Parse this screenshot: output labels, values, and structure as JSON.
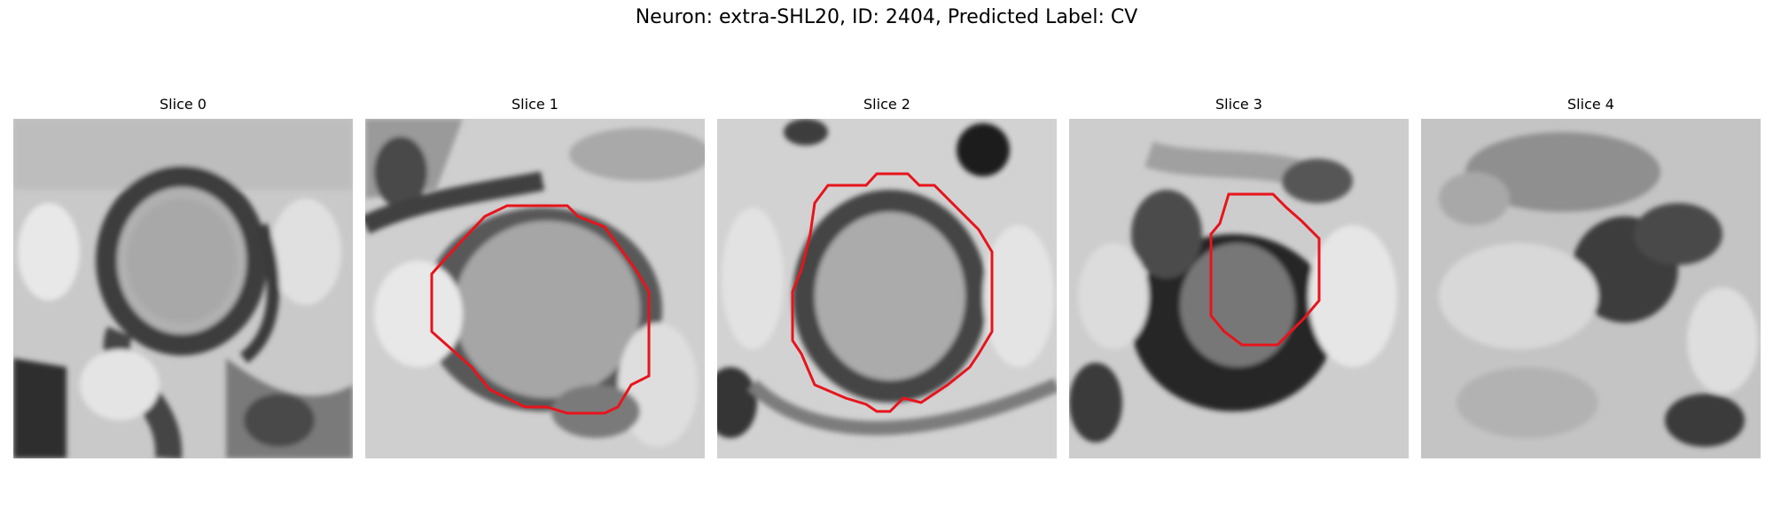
{
  "figure": {
    "title": "Neuron: extra-SHL20, ID: 2404, Predicted Label: CV"
  },
  "overlay_color": "#e8141c",
  "panels": [
    {
      "title": "Slice 0",
      "has_contour": false
    },
    {
      "title": "Slice 1",
      "has_contour": true
    },
    {
      "title": "Slice 2",
      "has_contour": true
    },
    {
      "title": "Slice 3",
      "has_contour": true
    },
    {
      "title": "Slice 4",
      "has_contour": false
    }
  ]
}
